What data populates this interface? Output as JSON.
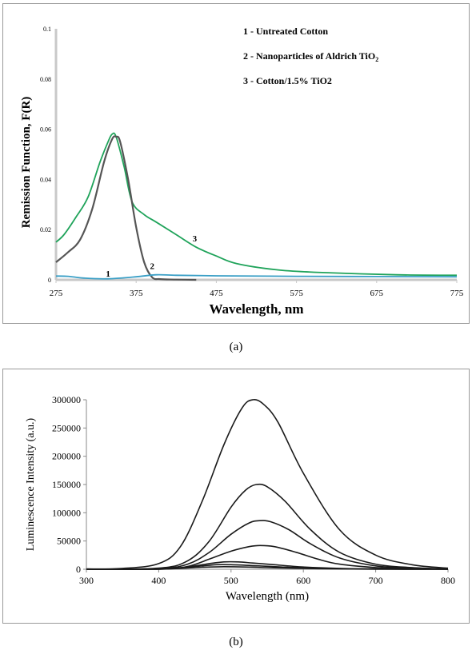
{
  "chart_data": [
    {
      "id": "a",
      "type": "line",
      "title": "",
      "xlabel": "Wavelength,  nm",
      "ylabel": "Remission Function, F(R)",
      "xlim": [
        275,
        775
      ],
      "ylim": [
        0,
        0.1
      ],
      "x_ticks": [
        275,
        375,
        475,
        575,
        675,
        775
      ],
      "y_ticks": [
        0,
        0.02,
        0.04,
        0.06,
        0.08,
        0.1
      ],
      "y_tick_labels": [
        "0",
        "0.02",
        "0.04",
        "0.06",
        "0.08",
        "0.1"
      ],
      "legend_position": "top-right",
      "legend": [
        {
          "text": "1 - Untreated Cotton",
          "sub": ""
        },
        {
          "text": "2 - Nanoparticles of Aldrich TiO",
          "sub": "2"
        },
        {
          "text": "3 - Cotton/1.5% TiO2",
          "sub": ""
        }
      ],
      "series": [
        {
          "name": "1",
          "color": "#3a9fc6",
          "x": [
            275,
            290,
            310,
            340,
            375,
            400,
            425,
            475,
            575,
            675,
            775
          ],
          "y": [
            0.0015,
            0.0014,
            0.0007,
            0.0004,
            0.0012,
            0.002,
            0.0018,
            0.0016,
            0.0014,
            0.0013,
            0.0012
          ]
        },
        {
          "name": "2",
          "color": "#555555",
          "x": [
            275,
            290,
            305,
            320,
            335,
            345,
            350,
            355,
            365,
            375,
            385,
            395,
            405,
            425,
            450
          ],
          "y": [
            0.007,
            0.011,
            0.016,
            0.028,
            0.047,
            0.056,
            0.057,
            0.055,
            0.04,
            0.021,
            0.007,
            0.001,
            0.0003,
            0.0001,
            0.0
          ]
        },
        {
          "name": "3",
          "color": "#1fa35a",
          "x": [
            275,
            285,
            300,
            315,
            330,
            340,
            345,
            350,
            360,
            370,
            385,
            400,
            425,
            450,
            475,
            500,
            550,
            600,
            700,
            775
          ],
          "y": [
            0.015,
            0.018,
            0.025,
            0.033,
            0.047,
            0.055,
            0.058,
            0.057,
            0.045,
            0.031,
            0.026,
            0.023,
            0.018,
            0.013,
            0.0095,
            0.0065,
            0.004,
            0.003,
            0.002,
            0.0018
          ]
        }
      ]
    },
    {
      "id": "b",
      "type": "line",
      "title": "",
      "xlabel": "Wavelength (nm)",
      "ylabel": "Luminescence Intensity (a.u.)",
      "xlim": [
        300,
        800
      ],
      "ylim": [
        0,
        300000
      ],
      "x_ticks": [
        300,
        400,
        500,
        600,
        700,
        800
      ],
      "y_ticks": [
        0,
        50000,
        100000,
        150000,
        200000,
        250000,
        300000
      ],
      "series": [
        {
          "x": [
            300,
            350,
            400,
            430,
            460,
            490,
            515,
            530,
            545,
            565,
            600,
            650,
            700,
            750,
            800
          ],
          "y": [
            500,
            1500,
            10000,
            40000,
            120000,
            220000,
            285000,
            300000,
            292000,
            260000,
            170000,
            70000,
            25000,
            8000,
            2000
          ]
        },
        {
          "x": [
            300,
            400,
            440,
            470,
            500,
            520,
            535,
            550,
            575,
            610,
            650,
            700,
            750,
            800
          ],
          "y": [
            0,
            2000,
            15000,
            50000,
            110000,
            140000,
            150000,
            146000,
            120000,
            70000,
            30000,
            9000,
            3000,
            500
          ]
        },
        {
          "x": [
            300,
            400,
            440,
            470,
            500,
            525,
            540,
            555,
            580,
            610,
            650,
            700,
            750,
            800
          ],
          "y": [
            0,
            1000,
            9000,
            30000,
            62000,
            82000,
            86000,
            84000,
            70000,
            45000,
            20000,
            6000,
            2000,
            300
          ]
        },
        {
          "x": [
            300,
            400,
            440,
            470,
            500,
            525,
            540,
            560,
            590,
            620,
            650,
            700,
            750,
            800
          ],
          "y": [
            0,
            500,
            5000,
            18000,
            32000,
            40000,
            42000,
            40000,
            30000,
            18000,
            9000,
            3000,
            1000,
            0
          ]
        },
        {
          "x": [
            300,
            400,
            440,
            470,
            490,
            510,
            530,
            560,
            600,
            650,
            700,
            800
          ],
          "y": [
            0,
            300,
            4000,
            10000,
            13000,
            13000,
            11000,
            8000,
            4000,
            1500,
            500,
            0
          ]
        },
        {
          "x": [
            300,
            400,
            430,
            460,
            480,
            500,
            530,
            570,
            620,
            700,
            800
          ],
          "y": [
            0,
            200,
            2500,
            6000,
            8000,
            8000,
            6500,
            4000,
            1800,
            400,
            0
          ]
        },
        {
          "x": [
            300,
            400,
            430,
            460,
            490,
            520,
            560,
            620,
            700,
            800
          ],
          "y": [
            0,
            200,
            1500,
            3500,
            4500,
            4000,
            2500,
            1000,
            200,
            0
          ]
        }
      ]
    }
  ],
  "captions": {
    "a": "(a)",
    "b": "(b)"
  }
}
